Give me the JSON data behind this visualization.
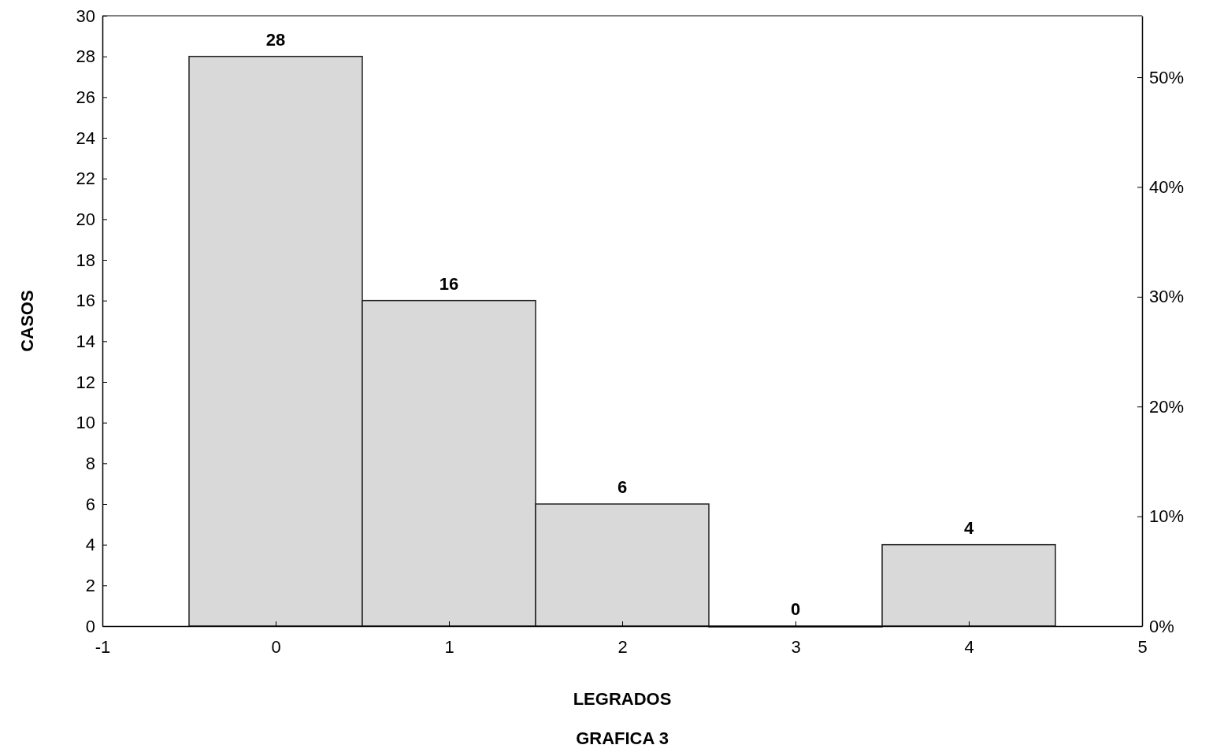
{
  "chart_data": {
    "type": "histogram",
    "title": "GRAFICA 3",
    "xlabel": "LEGRADOS",
    "ylabel": "CASOS",
    "bins": [
      -0.5,
      0.5,
      1.5,
      2.5,
      3.5,
      4.5
    ],
    "values": [
      28,
      16,
      6,
      0,
      4
    ],
    "color": "#d9d9d9",
    "data_labels": true,
    "xlim": [
      -1,
      5
    ],
    "xticks": [
      -1,
      0,
      1,
      2,
      3,
      4,
      5
    ],
    "ylim": [
      0,
      30
    ],
    "yticks": [
      0,
      2,
      4,
      6,
      8,
      10,
      12,
      14,
      16,
      18,
      20,
      22,
      24,
      26,
      28,
      30
    ],
    "y2lim": [
      0,
      55.6
    ],
    "y2ticks": [
      {
        "value": 0,
        "label": "0%"
      },
      {
        "value": 10,
        "label": "10%"
      },
      {
        "value": 20,
        "label": "20%"
      },
      {
        "value": 30,
        "label": "30%"
      },
      {
        "value": 40,
        "label": "40%"
      },
      {
        "value": 50,
        "label": "50%"
      }
    ],
    "grid": false
  }
}
